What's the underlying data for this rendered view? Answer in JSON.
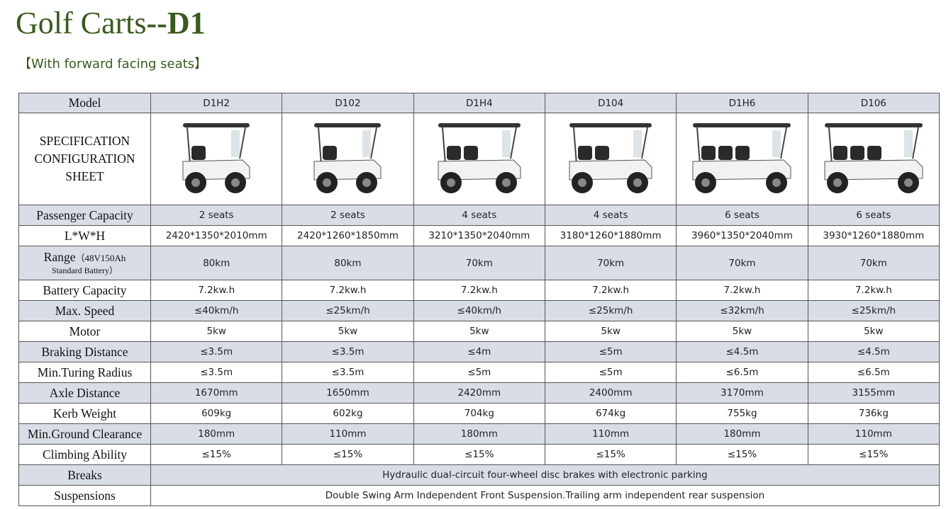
{
  "header": {
    "title": "Golf Carts",
    "title_suffix": "--D1",
    "subtitle": "【With forward facing seats】"
  },
  "table": {
    "model_label": "Model",
    "models": [
      "D1H2",
      "D102",
      "D1H4",
      "D104",
      "D1H6",
      "D106"
    ],
    "spec_label": [
      "SPECIFICATION",
      "CONFIGURATION",
      "SHEET"
    ],
    "rows": [
      {
        "label": "Passenger Capacity",
        "values": [
          "2 seats",
          "2 seats",
          "4 seats",
          "4 seats",
          "6 seats",
          "6 seats"
        ]
      },
      {
        "label": "L*W*H",
        "values": [
          "2420*1350*2010mm",
          "2420*1260*1850mm",
          "3210*1350*2040mm",
          "3180*1260*1880mm",
          "3960*1350*2040mm",
          "3930*1260*1880mm"
        ]
      },
      {
        "label": "Range",
        "note": [
          "（48V150Ah",
          "Standard Battery）"
        ],
        "values": [
          "80km",
          "80km",
          "70km",
          "70km",
          "70km",
          "70km"
        ]
      },
      {
        "label": "Battery Capacity",
        "values": [
          "7.2kw.h",
          "7.2kw.h",
          "7.2kw.h",
          "7.2kw.h",
          "7.2kw.h",
          "7.2kw.h"
        ]
      },
      {
        "label": "Max. Speed",
        "values": [
          "≤40km/h",
          "≤25km/h",
          "≤40km/h",
          "≤25km/h",
          "≤32km/h",
          "≤25km/h"
        ]
      },
      {
        "label": "Motor",
        "values": [
          "5kw",
          "5kw",
          "5kw",
          "5kw",
          "5kw",
          "5kw"
        ]
      },
      {
        "label": "Braking Distance",
        "values": [
          "≤3.5m",
          "≤3.5m",
          "≤4m",
          "≤5m",
          "≤4.5m",
          "≤4.5m"
        ]
      },
      {
        "label": "Min.Turing Radius",
        "values": [
          "≤3.5m",
          "≤3.5m",
          "≤5m",
          "≤5m",
          "≤6.5m",
          "≤6.5m"
        ]
      },
      {
        "label": "Axle Distance",
        "values": [
          "1670mm",
          "1650mm",
          "2420mm",
          "2400mm",
          "3170mm",
          "3155mm"
        ]
      },
      {
        "label": "Kerb Weight",
        "values": [
          "609kg",
          "602kg",
          "704kg",
          "674kg",
          "755kg",
          "736kg"
        ]
      },
      {
        "label": "Min.Ground Clearance",
        "values": [
          "180mm",
          "110mm",
          "180mm",
          "110mm",
          "180mm",
          "110mm"
        ]
      },
      {
        "label": "Climbing Ability",
        "values": [
          "≤15%",
          "≤15%",
          "≤15%",
          "≤15%",
          "≤15%",
          "≤15%"
        ]
      }
    ],
    "span_rows": [
      {
        "label": "Breaks",
        "value": "Hydraulic dual-circuit four-wheel disc brakes with electronic parking"
      },
      {
        "label": "Suspensions",
        "value": "Double Swing Arm Independent Front Suspension.Trailing arm independent rear suspension"
      }
    ]
  }
}
